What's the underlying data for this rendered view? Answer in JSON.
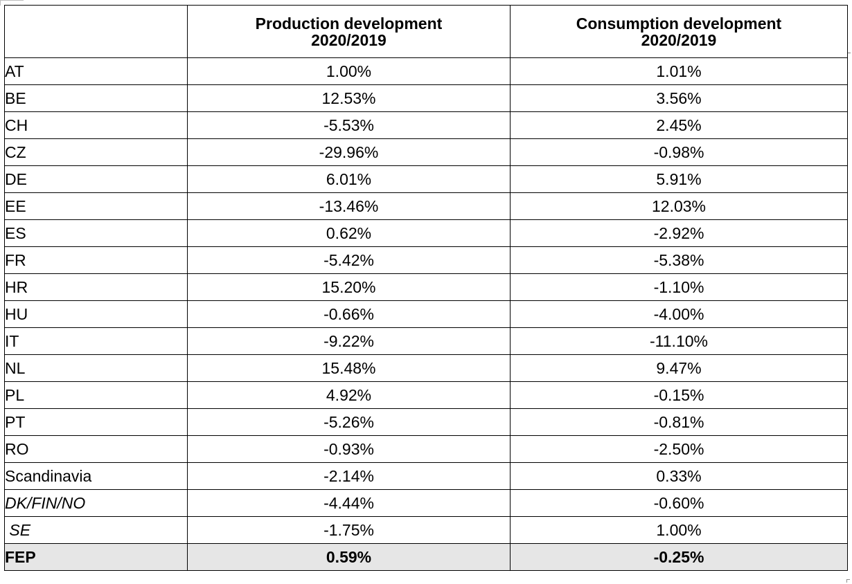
{
  "table": {
    "headers": [
      "",
      [
        "Production development",
        "2020/2019"
      ],
      [
        "Consumption development",
        "2020/2019"
      ]
    ],
    "rows": [
      {
        "region": "AT",
        "production": "1.00%",
        "consumption": "1.01%"
      },
      {
        "region": "BE",
        "production": "12.53%",
        "consumption": "3.56%"
      },
      {
        "region": "CH",
        "production": "-5.53%",
        "consumption": "2.45%"
      },
      {
        "region": "CZ",
        "production": "-29.96%",
        "consumption": "-0.98%"
      },
      {
        "region": "DE",
        "production": "6.01%",
        "consumption": "5.91%"
      },
      {
        "region": "EE",
        "production": "-13.46%",
        "consumption": "12.03%"
      },
      {
        "region": "ES",
        "production": "0.62%",
        "consumption": "-2.92%"
      },
      {
        "region": "FR",
        "production": "-5.42%",
        "consumption": "-5.38%"
      },
      {
        "region": "HR",
        "production": "15.20%",
        "consumption": "-1.10%"
      },
      {
        "region": "HU",
        "production": "-0.66%",
        "consumption": "-4.00%"
      },
      {
        "region": "IT",
        "production": "-9.22%",
        "consumption": "-11.10%"
      },
      {
        "region": "NL",
        "production": "15.48%",
        "consumption": "9.47%"
      },
      {
        "region": "PL",
        "production": "4.92%",
        "consumption": "-0.15%"
      },
      {
        "region": "PT",
        "production": "-5.26%",
        "consumption": "-0.81%"
      },
      {
        "region": "RO",
        "production": "-0.93%",
        "consumption": "-2.50%"
      },
      {
        "region": "Scandinavia",
        "production": "-2.14%",
        "consumption": "0.33%"
      },
      {
        "region": "DK/FIN/NO",
        "production": "-4.44%",
        "consumption": "-0.60%"
      },
      {
        "region": " SE",
        "production": "-1.75%",
        "consumption": "1.00%"
      },
      {
        "region": "FEP",
        "production": "0.59%",
        "consumption": "-0.25%"
      }
    ]
  }
}
